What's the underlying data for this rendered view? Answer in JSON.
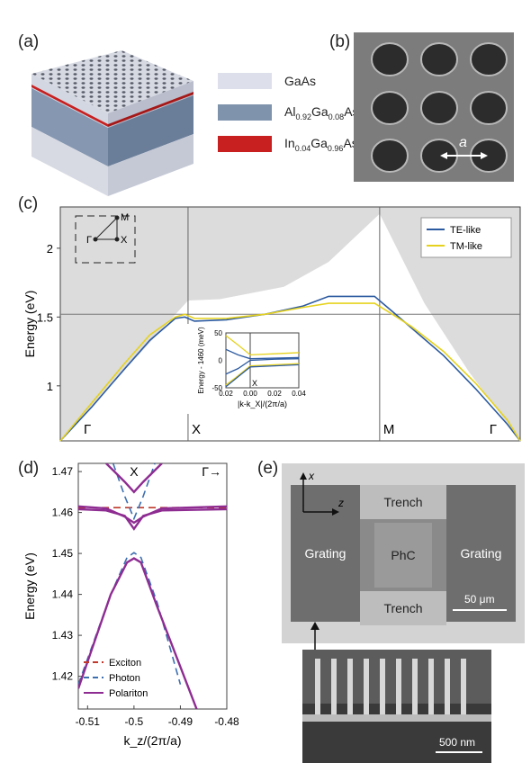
{
  "panels": {
    "a": "(a)",
    "b": "(b)",
    "c": "(c)",
    "d": "(d)",
    "e": "(e)"
  },
  "legend_a": [
    {
      "label": "GaAs",
      "color": "#dde0ea"
    },
    {
      "label_main": "Al",
      "sub1": "0.92",
      "mid": "Ga",
      "sub2": "0.08",
      "tail": "As",
      "color": "#7f93ad"
    },
    {
      "label_main": "In",
      "sub1": "0.04",
      "mid": "Ga",
      "sub2": "0.96",
      "tail": "As",
      "color": "#c82020"
    }
  ],
  "panel_b": {
    "lattice_label": "a"
  },
  "chart_data": [
    {
      "id": "band-structure",
      "type": "line",
      "ylabel": "Energy (eV)",
      "ylim": [
        0.6,
        2.3
      ],
      "yticks": [
        1,
        1.5,
        2
      ],
      "ytick_labels": [
        "1",
        "1.5",
        "2"
      ],
      "xtick_labels": [
        "Γ",
        "X",
        "M",
        "Γ"
      ],
      "hline": 1.52,
      "legend_position": "top-right",
      "brillouin_labels": [
        "Γ",
        "M",
        "X"
      ],
      "series": [
        {
          "name": "TE-like",
          "color": "#2c5aa0",
          "points": [
            [
              0,
              0.6
            ],
            [
              0.5,
              0.85
            ],
            [
              1,
              1.12
            ],
            [
              1.4,
              1.33
            ],
            [
              1.8,
              1.49
            ],
            [
              1.95,
              1.5
            ],
            [
              2.1,
              1.47
            ],
            [
              2.6,
              1.48
            ],
            [
              3.2,
              1.52
            ],
            [
              3.8,
              1.58
            ],
            [
              4.2,
              1.65
            ],
            [
              4.92,
              1.65
            ],
            [
              5.2,
              1.54
            ],
            [
              5.5,
              1.42
            ],
            [
              6,
              1.22
            ],
            [
              6.5,
              0.98
            ],
            [
              7,
              0.72
            ],
            [
              7.2,
              0.6
            ]
          ]
        },
        {
          "name": "TM-like",
          "color": "#e6d21e",
          "points": [
            [
              0,
              0.6
            ],
            [
              0.5,
              0.88
            ],
            [
              1,
              1.16
            ],
            [
              1.4,
              1.37
            ],
            [
              1.8,
              1.5
            ],
            [
              1.95,
              1.52
            ],
            [
              2.1,
              1.49
            ],
            [
              2.6,
              1.49
            ],
            [
              3.2,
              1.52
            ],
            [
              3.8,
              1.57
            ],
            [
              4.2,
              1.6
            ],
            [
              4.92,
              1.6
            ],
            [
              5.2,
              1.52
            ],
            [
              5.5,
              1.43
            ],
            [
              6,
              1.25
            ],
            [
              6.5,
              1.02
            ],
            [
              7,
              0.75
            ],
            [
              7.2,
              0.6
            ]
          ]
        }
      ]
    },
    {
      "id": "inset",
      "type": "line",
      "ylabel": "Energy - 1460 (meV)",
      "xlabel": "|k-k_X|/(2π/a)",
      "xlim": [
        -0.02,
        0.04
      ],
      "ylim": [
        -50,
        50
      ],
      "xticks": [
        -0.02,
        0,
        0.02,
        0.04
      ],
      "xtick_labels": [
        "0.02",
        "0.00",
        "0.02",
        "0.04"
      ],
      "yticks": [
        -50,
        0,
        50
      ],
      "ytick_labels": [
        "-50",
        "0",
        "50"
      ],
      "marker_label": "X",
      "series": [
        {
          "color": "#e6d21e",
          "points": [
            [
              -0.02,
              45
            ],
            [
              -0.01,
              28
            ],
            [
              0,
              10
            ],
            [
              0.02,
              12
            ],
            [
              0.04,
              14
            ]
          ]
        },
        {
          "color": "#2c5aa0",
          "points": [
            [
              -0.02,
              20
            ],
            [
              -0.01,
              10
            ],
            [
              0,
              3
            ],
            [
              0.02,
              4
            ],
            [
              0.04,
              5
            ]
          ]
        },
        {
          "color": "#2c5aa0",
          "points": [
            [
              -0.02,
              -25
            ],
            [
              -0.01,
              -15
            ],
            [
              0,
              0
            ],
            [
              0.02,
              2
            ],
            [
              0.04,
              3
            ]
          ]
        },
        {
          "color": "#e6d21e",
          "points": [
            [
              -0.02,
              -45
            ],
            [
              -0.01,
              -28
            ],
            [
              0,
              -10
            ],
            [
              0.02,
              -8
            ],
            [
              0.04,
              -6
            ]
          ]
        },
        {
          "color": "#2c5aa0",
          "points": [
            [
              -0.02,
              -48
            ],
            [
              -0.01,
              -30
            ],
            [
              0,
              -12
            ],
            [
              0.02,
              -10
            ],
            [
              0.04,
              -8
            ]
          ]
        }
      ]
    },
    {
      "id": "polariton",
      "type": "line",
      "xlabel": "k_z/(2π/a)",
      "ylabel": "Energy (eV)",
      "xlim": [
        -0.512,
        -0.48
      ],
      "ylim": [
        1.412,
        1.472
      ],
      "xticks": [
        -0.51,
        -0.5,
        -0.49,
        -0.48
      ],
      "xtick_labels": [
        "-0.51",
        "-0.5",
        "-0.49",
        "-0.48"
      ],
      "yticks": [
        1.42,
        1.43,
        1.44,
        1.45,
        1.46,
        1.47
      ],
      "ytick_labels": [
        "1.42",
        "1.43",
        "1.44",
        "1.45",
        "1.46",
        "1.47"
      ],
      "corner_labels": {
        "x_point": "X",
        "gamma": "Γ→"
      },
      "series": [
        {
          "name": "Exciton",
          "color": "#c0392b",
          "dash": true,
          "points": [
            [
              -0.512,
              1.4612
            ],
            [
              -0.48,
              1.4612
            ]
          ]
        },
        {
          "name": "Photon",
          "color": "#3d6fb0",
          "dash": true,
          "points": [
            [
              -0.512,
              1.418
            ],
            [
              -0.505,
              1.44
            ],
            [
              -0.5015,
              1.449
            ],
            [
              -0.5,
              1.4502
            ],
            [
              -0.4985,
              1.449
            ],
            [
              -0.495,
              1.438
            ],
            [
              -0.49,
              1.418
            ]
          ]
        },
        {
          "color": "#3d6fb0",
          "dash": true,
          "points": [
            [
              -0.5045,
              1.472
            ],
            [
              -0.502,
              1.464
            ],
            [
              -0.5,
              1.4585
            ],
            [
              -0.498,
              1.464
            ],
            [
              -0.4955,
              1.472
            ]
          ]
        },
        {
          "name": "Polariton",
          "color": "#8e2c92",
          "points": [
            [
              -0.512,
              1.417
            ],
            [
              -0.505,
              1.44
            ],
            [
              -0.5015,
              1.4478
            ],
            [
              -0.5,
              1.4488
            ],
            [
              -0.4985,
              1.4478
            ],
            [
              -0.495,
              1.437
            ],
            [
              -0.4865,
              1.412
            ]
          ]
        },
        {
          "color": "#8e2c92",
          "points": [
            [
              -0.512,
              1.4615
            ],
            [
              -0.506,
              1.461
            ],
            [
              -0.502,
              1.459
            ],
            [
              -0.5,
              1.4575
            ],
            [
              -0.498,
              1.459
            ],
            [
              -0.494,
              1.461
            ],
            [
              -0.48,
              1.4615
            ]
          ]
        },
        {
          "color": "#8e2c92",
          "points": [
            [
              -0.512,
              1.4608
            ],
            [
              -0.506,
              1.4605
            ],
            [
              -0.502,
              1.4592
            ],
            [
              -0.5,
              1.456
            ],
            [
              -0.498,
              1.4592
            ],
            [
              -0.494,
              1.4605
            ],
            [
              -0.48,
              1.4608
            ]
          ]
        },
        {
          "color": "#8e2c92",
          "points": [
            [
              -0.506,
              1.472
            ],
            [
              -0.502,
              1.4675
            ],
            [
              -0.5,
              1.465
            ],
            [
              -0.498,
              1.4675
            ],
            [
              -0.494,
              1.472
            ]
          ]
        }
      ]
    }
  ],
  "panel_e": {
    "axis_x": "x",
    "axis_z": "z",
    "grating_left": "Grating",
    "grating_right": "Grating",
    "trench_top": "Trench",
    "trench_bottom": "Trench",
    "phc": "PhC",
    "scale_main": "50 μm",
    "scale_inset": "500 nm"
  }
}
